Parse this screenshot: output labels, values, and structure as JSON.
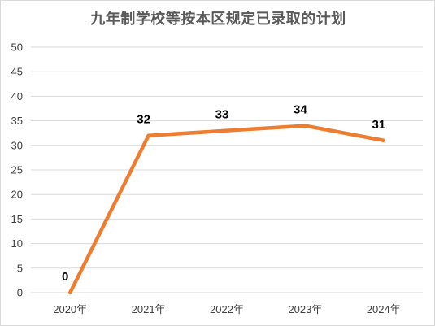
{
  "chart_data": {
    "type": "line",
    "title": "九年制学校等按本区规定已录取的计划",
    "categories": [
      "2020年",
      "2021年",
      "2022年",
      "2023年",
      "2024年"
    ],
    "series": [
      {
        "values": [
          0,
          32,
          33,
          34,
          31
        ],
        "color": "#ED7D31"
      }
    ],
    "data_labels": [
      "0",
      "32",
      "33",
      "34",
      "31"
    ],
    "y_ticks": [
      "0",
      "5",
      "10",
      "15",
      "20",
      "25",
      "30",
      "35",
      "40",
      "45",
      "50"
    ],
    "ylim": [
      0,
      50
    ],
    "xlabel": "",
    "ylabel": "",
    "grid": true,
    "legend": "none"
  },
  "colors": {
    "gridline": "#d9d9d9",
    "line": "#ED7D31"
  }
}
